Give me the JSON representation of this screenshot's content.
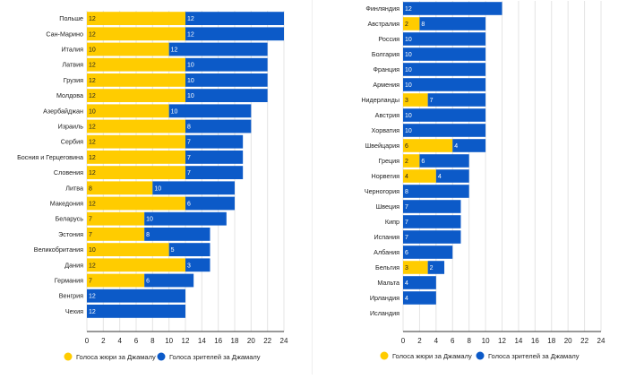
{
  "legend": {
    "jury_label": "Голоса жюри за Джамалу",
    "viewers_label": "Голоса зрителей за Джамалу"
  },
  "colors": {
    "jury": "#FFCC00",
    "viewers": "#0C5AC8",
    "grid": "#E4E4E4",
    "axis": "#333333",
    "text": "#222222",
    "value_text": "#222222",
    "value_text_dark": "#FFFFFF"
  },
  "chart_data": [
    {
      "type": "bar",
      "orientation": "horizontal",
      "stacked": true,
      "title": "",
      "xlabel": "",
      "ylabel": "",
      "xlim": [
        0,
        24
      ],
      "xticks": [
        0,
        2,
        4,
        6,
        8,
        10,
        12,
        14,
        16,
        18,
        20,
        22,
        24
      ],
      "legend_position": "bottom",
      "categories": [
        "Польше",
        "Сан-Марино",
        "Италия",
        "Латвия",
        "Грузия",
        "Молдова",
        "Азербайджан",
        "Израиль",
        "Сербия",
        "Босния и Герцеговина",
        "Словения",
        "Литва",
        "Македония",
        "Беларусь",
        "Эстония",
        "Великобритания",
        "Дания",
        "Германия",
        "Венгрия",
        "Чехия"
      ],
      "series": [
        {
          "name": "Голоса жюри за Джамалу",
          "values": [
            12,
            12,
            10,
            12,
            12,
            12,
            10,
            12,
            12,
            12,
            12,
            8,
            12,
            7,
            7,
            10,
            12,
            7,
            0,
            0
          ]
        },
        {
          "name": "Голоса зрителей за Джамалу",
          "values": [
            12,
            12,
            12,
            10,
            10,
            10,
            10,
            8,
            7,
            7,
            7,
            10,
            6,
            10,
            8,
            5,
            3,
            6,
            12,
            12
          ]
        }
      ]
    },
    {
      "type": "bar",
      "orientation": "horizontal",
      "stacked": true,
      "title": "",
      "xlabel": "",
      "ylabel": "",
      "xlim": [
        0,
        24
      ],
      "xticks": [
        0,
        2,
        4,
        6,
        8,
        10,
        12,
        14,
        16,
        18,
        20,
        22,
        24
      ],
      "legend_position": "bottom",
      "categories": [
        "Финляндия",
        "Австралия",
        "Россия",
        "Болгария",
        "Франция",
        "Армения",
        "Нидерланды",
        "Австрия",
        "Хорватия",
        "Швейцария",
        "Греция",
        "Норвегия",
        "Черногория",
        "Швеция",
        "Кипр",
        "Испания",
        "Албания",
        "Бельгия",
        "Мальта",
        "Ирландия",
        "Исландия"
      ],
      "series": [
        {
          "name": "Голоса жюри за Джамалу",
          "values": [
            0,
            2,
            0,
            0,
            0,
            0,
            3,
            0,
            0,
            6,
            2,
            4,
            0,
            0,
            0,
            0,
            0,
            3,
            0,
            0,
            0
          ]
        },
        {
          "name": "Голоса зрителей за Джамалу",
          "values": [
            12,
            8,
            10,
            10,
            10,
            10,
            7,
            10,
            10,
            4,
            6,
            4,
            8,
            7,
            7,
            7,
            6,
            2,
            4,
            4,
            0
          ]
        }
      ]
    }
  ]
}
